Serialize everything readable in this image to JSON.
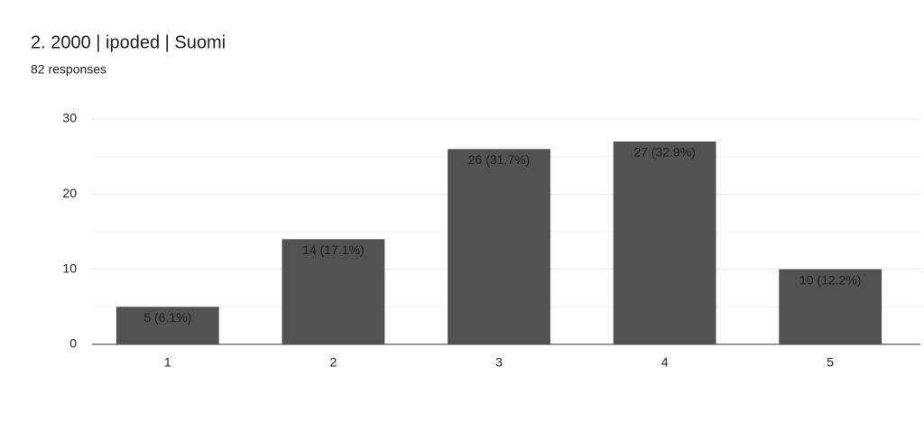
{
  "chart_data": {
    "type": "bar",
    "title": "2. 2000 | ipoded | Suomi",
    "subtitle": "82 responses",
    "categories": [
      "1",
      "2",
      "3",
      "4",
      "5"
    ],
    "values": [
      5,
      14,
      26,
      27,
      10
    ],
    "value_labels": [
      "5 (6.1%)",
      "14 (17.1%)",
      "26 (31.7%)",
      "27 (32.9%)",
      "10 (12.2%)"
    ],
    "color": "#525252",
    "ylim": [
      0,
      30
    ],
    "yticks": [
      0,
      10,
      20,
      30
    ],
    "minor_yticks": [
      5,
      15,
      25
    ],
    "grid": true
  }
}
